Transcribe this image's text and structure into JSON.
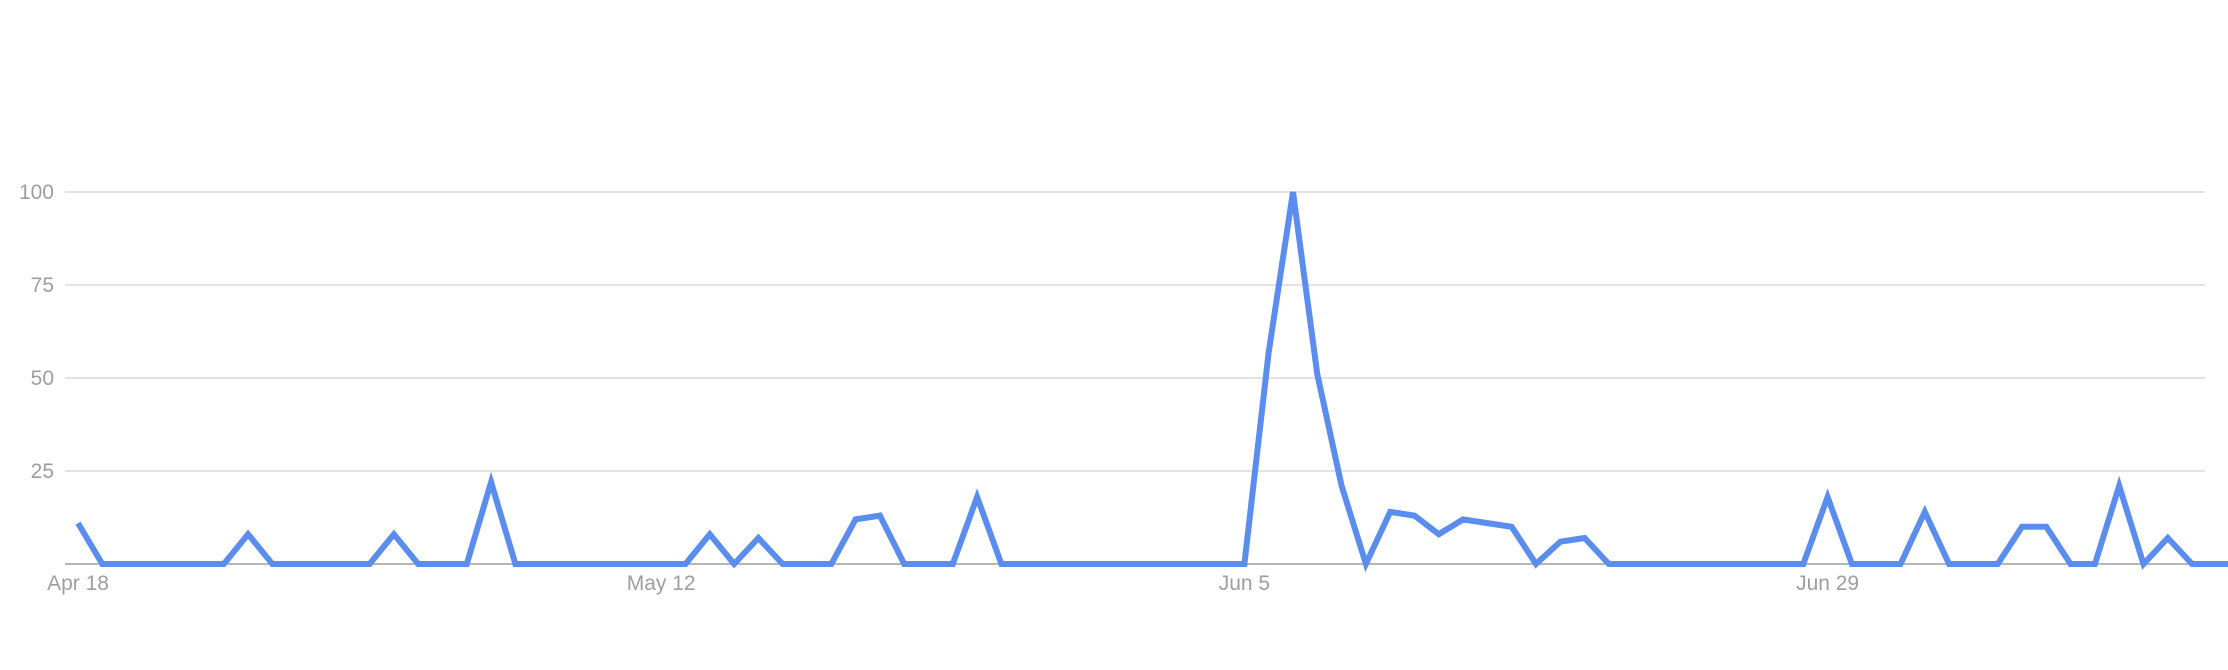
{
  "chart_data": {
    "type": "line",
    "title": "",
    "xlabel": "",
    "ylabel": "",
    "ylim": [
      0,
      100
    ],
    "yticks": [
      "100",
      "75",
      "50",
      "25"
    ],
    "xticks": [
      "Apr 18",
      "May 12",
      "Jun 5",
      "Jun 29"
    ],
    "x_range": [
      "Apr 18",
      "Jul 15"
    ],
    "grid": true,
    "legend": "none",
    "colors": {
      "line": "#5b8def",
      "grid": "#dadada",
      "axis": "#9e9e9e",
      "tick_text": "#9e9e9e"
    },
    "series": [
      {
        "values": [
          11,
          0,
          0,
          0,
          0,
          0,
          0,
          8,
          0,
          0,
          0,
          0,
          0,
          8,
          0,
          0,
          0,
          22,
          0,
          0,
          0,
          0,
          0,
          0,
          0,
          0,
          8,
          0,
          7,
          0,
          0,
          0,
          12,
          13,
          0,
          0,
          0,
          18,
          0,
          0,
          0,
          0,
          0,
          0,
          0,
          0,
          0,
          0,
          0,
          57,
          100,
          51,
          21,
          0,
          14,
          13,
          8,
          12,
          11,
          10,
          0,
          6,
          7,
          0,
          0,
          0,
          0,
          0,
          0,
          0,
          0,
          0,
          18,
          0,
          0,
          0,
          14,
          0,
          0,
          0,
          10,
          10,
          0,
          0,
          21,
          0,
          7,
          0,
          0,
          0
        ]
      }
    ]
  }
}
